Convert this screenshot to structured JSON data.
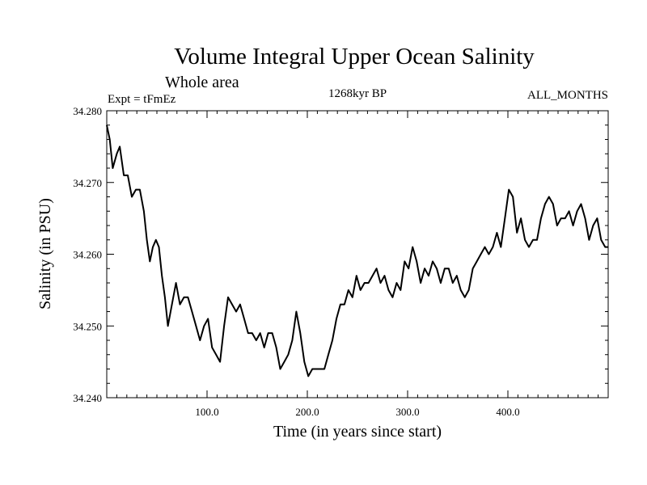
{
  "chart_data": {
    "type": "line",
    "title": "Volume Integral Upper Ocean Salinity",
    "subtitle": "Whole area",
    "experiment": "Expt = tFmEz",
    "period": "1268kyr BP",
    "months": "ALL_MONTHS",
    "xlabel": "Time (in years since start)",
    "ylabel": "Salinity (in PSU)",
    "xlim": [
      0,
      500
    ],
    "ylim": [
      34.24,
      34.28
    ],
    "x_ticks": [
      100,
      200,
      300,
      400
    ],
    "x_tick_labels": [
      "100.0",
      "200.0",
      "300.0",
      "400.0"
    ],
    "y_ticks": [
      34.24,
      34.25,
      34.26,
      34.27,
      34.28
    ],
    "y_tick_labels": [
      "34.240",
      "34.250",
      "34.260",
      "34.270",
      "34.280"
    ],
    "grid": false,
    "series": [
      {
        "name": "Salinity",
        "x": [
          0,
          3,
          6,
          10,
          13,
          17,
          21,
          25,
          29,
          33,
          37,
          40,
          43,
          46,
          49,
          52,
          55,
          58,
          61,
          65,
          69,
          73,
          77,
          81,
          85,
          89,
          93,
          97,
          101,
          105,
          109,
          113,
          117,
          121,
          125,
          129,
          133,
          137,
          141,
          145,
          149,
          153,
          157,
          161,
          165,
          169,
          173,
          177,
          181,
          185,
          189,
          193,
          197,
          201,
          205,
          209,
          213,
          217,
          221,
          225,
          229,
          233,
          237,
          241,
          245,
          249,
          253,
          257,
          261,
          265,
          269,
          273,
          277,
          281,
          285,
          289,
          293,
          297,
          301,
          305,
          309,
          313,
          317,
          321,
          325,
          329,
          333,
          337,
          341,
          345,
          349,
          353,
          357,
          361,
          365,
          369,
          373,
          377,
          381,
          385,
          389,
          393,
          397,
          401,
          405,
          409,
          413,
          417,
          421,
          425,
          429,
          433,
          437,
          441,
          445,
          449,
          453,
          457,
          461,
          465,
          469,
          473,
          477,
          481,
          485,
          489,
          493,
          497,
          500
        ],
        "values": [
          34.278,
          34.276,
          34.272,
          34.274,
          34.275,
          34.271,
          34.271,
          34.268,
          34.269,
          34.269,
          34.266,
          34.262,
          34.259,
          34.261,
          34.262,
          34.261,
          34.257,
          34.254,
          34.25,
          34.253,
          34.256,
          34.253,
          34.254,
          34.254,
          34.252,
          34.25,
          34.248,
          34.25,
          34.251,
          34.247,
          34.246,
          34.245,
          34.25,
          34.254,
          34.253,
          34.252,
          34.253,
          34.251,
          34.249,
          34.249,
          34.248,
          34.249,
          34.247,
          34.249,
          34.249,
          34.247,
          34.244,
          34.245,
          34.246,
          34.248,
          34.252,
          34.249,
          34.245,
          34.243,
          34.244,
          34.244,
          34.244,
          34.244,
          34.246,
          34.248,
          34.251,
          34.253,
          34.253,
          34.255,
          34.254,
          34.257,
          34.255,
          34.256,
          34.256,
          34.257,
          34.258,
          34.256,
          34.257,
          34.255,
          34.254,
          34.256,
          34.255,
          34.259,
          34.258,
          34.261,
          34.259,
          34.256,
          34.258,
          34.257,
          34.259,
          34.258,
          34.256,
          34.258,
          34.258,
          34.256,
          34.257,
          34.255,
          34.254,
          34.255,
          34.258,
          34.259,
          34.26,
          34.261,
          34.26,
          34.261,
          34.263,
          34.261,
          34.265,
          34.269,
          34.268,
          34.263,
          34.265,
          34.262,
          34.261,
          34.262,
          34.262,
          34.265,
          34.267,
          34.268,
          34.267,
          34.264,
          34.265,
          34.265,
          34.266,
          34.264,
          34.266,
          34.267,
          34.265,
          34.262,
          34.264,
          34.265,
          34.262,
          34.261,
          34.261
        ]
      }
    ]
  }
}
